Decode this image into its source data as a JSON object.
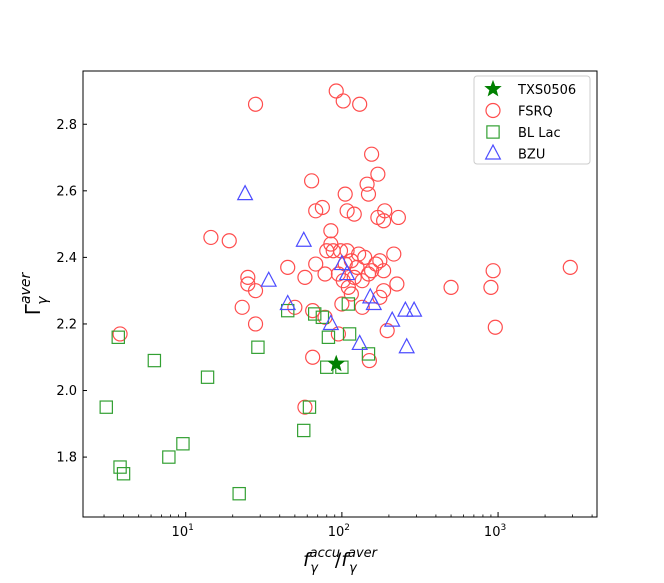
{
  "chart_data": {
    "type": "scatter",
    "xscale": "log",
    "xlim": [
      2.2,
      4300
    ],
    "ylim": [
      1.62,
      2.96
    ],
    "grid": false,
    "legend_position": "top-right",
    "xlabel": {
      "base": "f",
      "sub1": "γ",
      "sup1": "accu",
      "slash": "/",
      "base2": "f",
      "sub2": "γ",
      "sup2": "aver"
    },
    "ylabel": {
      "base": "Γ",
      "sub": "γ",
      "sup": "aver"
    },
    "x_ticks": [
      {
        "value": 10,
        "base": "10",
        "exp": "1"
      },
      {
        "value": 100,
        "base": "10",
        "exp": "2"
      },
      {
        "value": 1000,
        "base": "10",
        "exp": "3"
      }
    ],
    "y_ticks": [
      {
        "value": 1.8,
        "label": "1.8"
      },
      {
        "value": 2.0,
        "label": "2.0"
      },
      {
        "value": 2.2,
        "label": "2.2"
      },
      {
        "value": 2.4,
        "label": "2.4"
      },
      {
        "value": 2.6,
        "label": "2.6"
      },
      {
        "value": 2.8,
        "label": "2.8"
      }
    ],
    "series": [
      {
        "name": "TXS0506",
        "marker": "star",
        "color": "#008000",
        "points": [
          [
            92,
            2.08
          ]
        ]
      },
      {
        "name": "FSRQ",
        "marker": "circle",
        "color": "#ff4d4d",
        "points": [
          [
            28,
            2.86
          ],
          [
            92,
            2.9
          ],
          [
            102,
            2.87
          ],
          [
            130,
            2.86
          ],
          [
            155,
            2.71
          ],
          [
            64,
            2.63
          ],
          [
            145,
            2.62
          ],
          [
            170,
            2.65
          ],
          [
            105,
            2.59
          ],
          [
            148,
            2.59
          ],
          [
            68,
            2.54
          ],
          [
            75,
            2.55
          ],
          [
            108,
            2.54
          ],
          [
            120,
            2.53
          ],
          [
            170,
            2.52
          ],
          [
            185,
            2.51
          ],
          [
            188,
            2.54
          ],
          [
            230,
            2.52
          ],
          [
            14.5,
            2.46
          ],
          [
            19,
            2.45
          ],
          [
            85,
            2.48
          ],
          [
            85,
            2.44
          ],
          [
            98,
            2.42
          ],
          [
            108,
            2.42
          ],
          [
            88,
            2.42
          ],
          [
            80,
            2.42
          ],
          [
            115,
            2.39
          ],
          [
            128,
            2.41
          ],
          [
            140,
            2.4
          ],
          [
            165,
            2.38
          ],
          [
            175,
            2.39
          ],
          [
            215,
            2.41
          ],
          [
            125,
            2.37
          ],
          [
            105,
            2.38
          ],
          [
            25,
            2.34
          ],
          [
            25,
            2.32
          ],
          [
            28,
            2.3
          ],
          [
            45,
            2.37
          ],
          [
            58,
            2.34
          ],
          [
            68,
            2.38
          ],
          [
            78,
            2.35
          ],
          [
            95,
            2.35
          ],
          [
            102,
            2.33
          ],
          [
            110,
            2.31
          ],
          [
            120,
            2.34
          ],
          [
            135,
            2.33
          ],
          [
            148,
            2.35
          ],
          [
            155,
            2.36
          ],
          [
            185,
            2.36
          ],
          [
            225,
            2.32
          ],
          [
            185,
            2.3
          ],
          [
            175,
            2.28
          ],
          [
            115,
            2.29
          ],
          [
            23,
            2.25
          ],
          [
            28,
            2.2
          ],
          [
            50,
            2.25
          ],
          [
            65,
            2.24
          ],
          [
            78,
            2.22
          ],
          [
            100,
            2.26
          ],
          [
            135,
            2.25
          ],
          [
            3.8,
            2.17
          ],
          [
            95,
            2.17
          ],
          [
            195,
            2.18
          ],
          [
            65,
            2.1
          ],
          [
            150,
            2.09
          ],
          [
            58,
            1.95
          ],
          [
            500,
            2.31
          ],
          [
            900,
            2.31
          ],
          [
            930,
            2.36
          ],
          [
            960,
            2.19
          ],
          [
            2900,
            2.37
          ]
        ]
      },
      {
        "name": "BL Lac",
        "marker": "square",
        "color": "#33a033",
        "points": [
          [
            3.7,
            2.16
          ],
          [
            3.1,
            1.95
          ],
          [
            3.8,
            1.77
          ],
          [
            4.0,
            1.75
          ],
          [
            6.3,
            2.09
          ],
          [
            7.8,
            1.8
          ],
          [
            9.6,
            1.84
          ],
          [
            13.8,
            2.04
          ],
          [
            22,
            1.69
          ],
          [
            29,
            2.13
          ],
          [
            45,
            2.24
          ],
          [
            57,
            1.88
          ],
          [
            62,
            1.95
          ],
          [
            67,
            2.23
          ],
          [
            75,
            2.22
          ],
          [
            80,
            2.07
          ],
          [
            82,
            2.16
          ],
          [
            100,
            2.07
          ],
          [
            110,
            2.26
          ],
          [
            112,
            2.17
          ],
          [
            148,
            2.11
          ]
        ]
      },
      {
        "name": "BZU",
        "marker": "triangle",
        "color": "#4d4dff",
        "points": [
          [
            24,
            2.59
          ],
          [
            34,
            2.33
          ],
          [
            45,
            2.26
          ],
          [
            57,
            2.45
          ],
          [
            85,
            2.2
          ],
          [
            100,
            2.38
          ],
          [
            108,
            2.35
          ],
          [
            130,
            2.14
          ],
          [
            152,
            2.28
          ],
          [
            160,
            2.26
          ],
          [
            210,
            2.21
          ],
          [
            255,
            2.24
          ],
          [
            260,
            2.13
          ],
          [
            290,
            2.24
          ]
        ]
      }
    ]
  }
}
